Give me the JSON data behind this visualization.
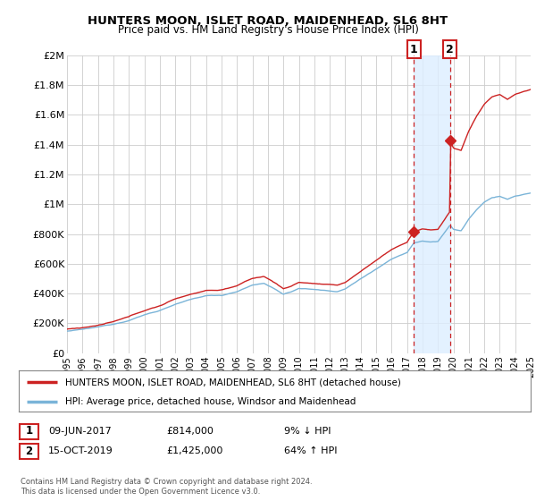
{
  "title": "HUNTERS MOON, ISLET ROAD, MAIDENHEAD, SL6 8HT",
  "subtitle": "Price paid vs. HM Land Registry's House Price Index (HPI)",
  "ylabel_ticks": [
    "£0",
    "£200K",
    "£400K",
    "£600K",
    "£800K",
    "£1M",
    "£1.2M",
    "£1.4M",
    "£1.6M",
    "£1.8M",
    "£2M"
  ],
  "ytick_values": [
    0,
    200000,
    400000,
    600000,
    800000,
    1000000,
    1200000,
    1400000,
    1600000,
    1800000,
    2000000
  ],
  "x_start_year": 1995,
  "x_end_year": 2025,
  "sale1_date": 2017.44,
  "sale1_price": 814000,
  "sale1_label": "1",
  "sale2_date": 2019.79,
  "sale2_price": 1425000,
  "sale2_label": "2",
  "hpi_line_color": "#7ab4d8",
  "price_line_color": "#cc2222",
  "sale_marker_color": "#cc2222",
  "annotation_box_color": "#cc2222",
  "shade_color": "#ddeeff",
  "grid_color": "#cccccc",
  "background_color": "#ffffff",
  "legend_label_red": "HUNTERS MOON, ISLET ROAD, MAIDENHEAD, SL6 8HT (detached house)",
  "legend_label_blue": "HPI: Average price, detached house, Windsor and Maidenhead",
  "table_row1": [
    "1",
    "09-JUN-2017",
    "£814,000",
    "9% ↓ HPI"
  ],
  "table_row2": [
    "2",
    "15-OCT-2019",
    "£1,425,000",
    "64% ↑ HPI"
  ],
  "footer": "Contains HM Land Registry data © Crown copyright and database right 2024.\nThis data is licensed under the Open Government Licence v3.0."
}
